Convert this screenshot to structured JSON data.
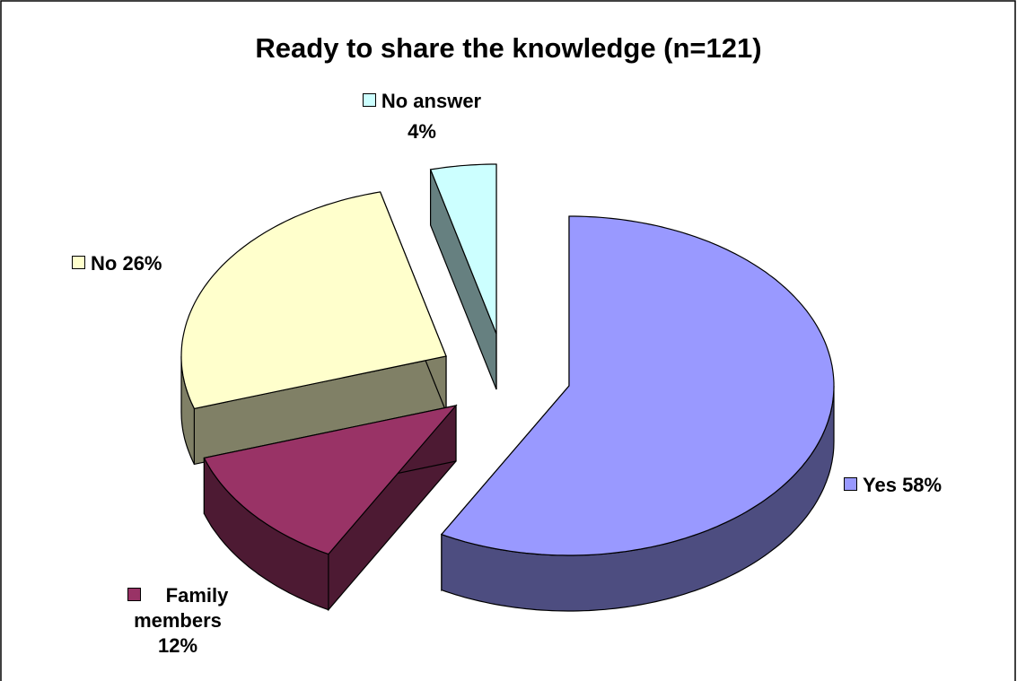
{
  "chart_data": {
    "type": "pie",
    "title": "Ready to share the knowledge (n=121)",
    "categories": [
      "Yes",
      "Family members",
      "No",
      "No answer"
    ],
    "values": [
      58,
      12,
      26,
      4
    ],
    "value_labels": [
      "58%",
      "12%",
      "26%",
      "4%"
    ],
    "colors": [
      "#9999ff",
      "#993366",
      "#ffffcc",
      "#ccffff"
    ],
    "three_d": true,
    "exploded": true
  }
}
